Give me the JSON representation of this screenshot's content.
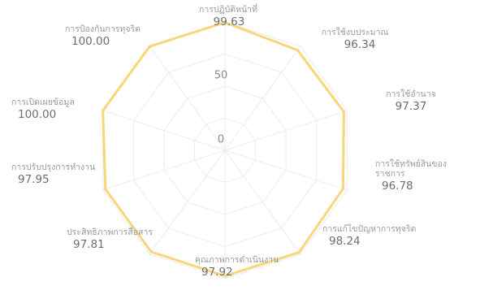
{
  "chart_data": {
    "type": "radar",
    "title": "",
    "categories": [
      "การปฏิบัติหน้าที่",
      "การใช้งบประมาณ",
      "การใช้อำนาจ",
      "การใช้ทรัพย์สินของราชการ",
      "การแก้ไขปัญหาการทุจริต",
      "คุณภาพการดำเนินงาน",
      "ประสิทธิภาพการสื่อสาร",
      "การปรับปรุงการทำงาน",
      "การเปิดเผยข้อมูล",
      "การป้องกันการทุจริต"
    ],
    "series": [
      {
        "values": [
          99.63,
          96.34,
          97.37,
          96.78,
          98.24,
          97.92,
          97.81,
          97.95,
          100.0,
          100.0
        ]
      }
    ],
    "value_labels": [
      "99.63",
      "96.34",
      "97.37",
      "96.78",
      "98.24",
      "97.92",
      "97.81",
      "97.95",
      "100.00",
      "100.00"
    ],
    "r_ticks": [
      "0",
      "50"
    ],
    "rlim": [
      0,
      100
    ],
    "grid": true,
    "legend": "none",
    "colors": {
      "line": "#f5d77a",
      "grid": "#ececec",
      "text": "#7f7f7f"
    }
  }
}
